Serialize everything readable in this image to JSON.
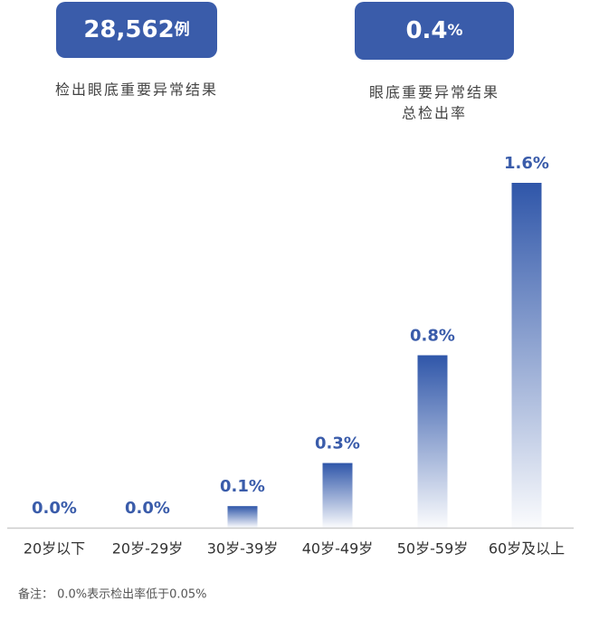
{
  "stats": [
    {
      "value": "28,562",
      "unit": "例",
      "label": [
        "检出眼底重要异常结果"
      ]
    },
    {
      "value": "0.4",
      "unit": "%",
      "label": [
        "眼底重要异常结果",
        "总检出率"
      ]
    }
  ],
  "chart_data": {
    "type": "bar",
    "categories": [
      "20岁以下",
      "20岁-29岁",
      "30岁-39岁",
      "40岁-49岁",
      "50岁-59岁",
      "60岁及以上"
    ],
    "values": [
      0.0,
      0.0,
      0.1,
      0.3,
      0.8,
      1.6
    ],
    "value_labels": [
      "0.0%",
      "0.0%",
      "0.1%",
      "0.3%",
      "0.8%",
      "1.6%"
    ],
    "color": "#2f56a9",
    "ylim": [
      0,
      1.6
    ]
  },
  "note": "备注： 0.0%表示检出率低于0.05%"
}
